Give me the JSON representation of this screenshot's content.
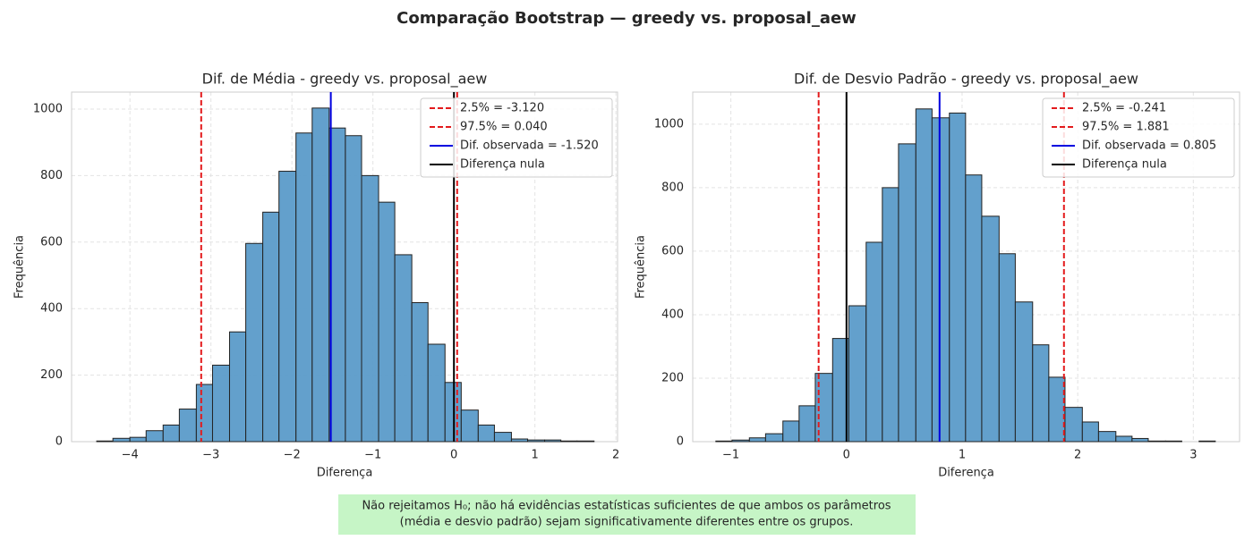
{
  "title": "Comparação Bootstrap — greedy vs. proposal_aew",
  "note": [
    "Não rejeitamos H₀; não há evidências estatísticas suficientes de que ambos os parâmetros",
    "(média e desvio padrão) sejam significativamente diferentes entre os grupos."
  ],
  "chart_data": [
    {
      "type": "histogram",
      "title": "Dif. de Média - greedy vs. proposal_aew",
      "xlabel": "Diferença",
      "ylabel": "Frequência",
      "bins": [
        -4.41,
        -4.21,
        -4.0,
        -3.8,
        -3.59,
        -3.39,
        -3.18,
        -2.98,
        -2.77,
        -2.57,
        -2.36,
        -2.16,
        -1.95,
        -1.75,
        -1.54,
        -1.34,
        -1.14,
        -0.93,
        -0.73,
        -0.52,
        -0.32,
        -0.11,
        0.09,
        0.3,
        0.5,
        0.71,
        0.91,
        1.12,
        1.32,
        1.52,
        1.73
      ],
      "values": [
        2,
        10,
        13,
        33,
        50,
        98,
        172,
        230,
        330,
        596,
        690,
        813,
        928,
        1003,
        943,
        920,
        800,
        720,
        562,
        418,
        293,
        178,
        95,
        50,
        28,
        8,
        5,
        5,
        2,
        2
      ],
      "color": "#5b9bc9",
      "lines": [
        {
          "name": "2.5% = -3.120",
          "value": -3.12,
          "color": "#e31a1c",
          "dashed": true
        },
        {
          "name": "97.5% = 0.040",
          "value": 0.04,
          "color": "#e31a1c",
          "dashed": true
        },
        {
          "name": "Dif. observada = -1.520",
          "value": -1.52,
          "color": "#0000e0",
          "dashed": false
        },
        {
          "name": "Diferença nula",
          "value": 0,
          "color": "#000000",
          "dashed": false
        }
      ],
      "xlim": [
        -4.72,
        2.02
      ],
      "xticks": [
        {
          "value": -4,
          "label": "−4"
        },
        {
          "value": -3,
          "label": "−3"
        },
        {
          "value": -2,
          "label": "−2"
        },
        {
          "value": -1,
          "label": "−1"
        },
        0,
        1,
        2
      ],
      "ylim": [
        0,
        1051
      ],
      "yticks": [
        0,
        200,
        400,
        600,
        800,
        1000
      ],
      "grid": true,
      "legend": "upper right"
    },
    {
      "type": "histogram",
      "title": "Dif. de Desvio Padrão - greedy vs. proposal_aew",
      "xlabel": "Diferença",
      "ylabel": "Frequência",
      "bins": [
        -1.13,
        -0.99,
        -0.84,
        -0.7,
        -0.55,
        -0.41,
        -0.27,
        -0.12,
        0.02,
        0.17,
        0.31,
        0.45,
        0.6,
        0.74,
        0.89,
        1.03,
        1.17,
        1.32,
        1.46,
        1.61,
        1.75,
        1.89,
        2.04,
        2.18,
        2.33,
        2.47,
        2.61,
        2.76,
        2.9,
        3.05,
        3.19
      ],
      "values": [
        2,
        5,
        12,
        25,
        65,
        113,
        215,
        325,
        428,
        628,
        800,
        938,
        1048,
        1020,
        1035,
        840,
        710,
        592,
        440,
        305,
        203,
        108,
        62,
        32,
        17,
        10,
        2,
        2,
        0,
        2
      ],
      "color": "#5b9bc9",
      "lines": [
        {
          "name": "2.5% = -0.241",
          "value": -0.241,
          "color": "#e31a1c",
          "dashed": true
        },
        {
          "name": "97.5% = 1.881",
          "value": 1.881,
          "color": "#e31a1c",
          "dashed": true
        },
        {
          "name": "Dif. observada = 0.805",
          "value": 0.805,
          "color": "#0000e0",
          "dashed": false
        },
        {
          "name": "Diferença nula",
          "value": 0,
          "color": "#000000",
          "dashed": false
        }
      ],
      "xlim": [
        -1.33,
        3.4
      ],
      "xticks": [
        {
          "value": -1,
          "label": "−1"
        },
        0,
        1,
        2,
        3
      ],
      "ylim": [
        0,
        1101
      ],
      "yticks": [
        0,
        200,
        400,
        600,
        800,
        1000
      ],
      "grid": true,
      "legend": "upper right"
    }
  ]
}
